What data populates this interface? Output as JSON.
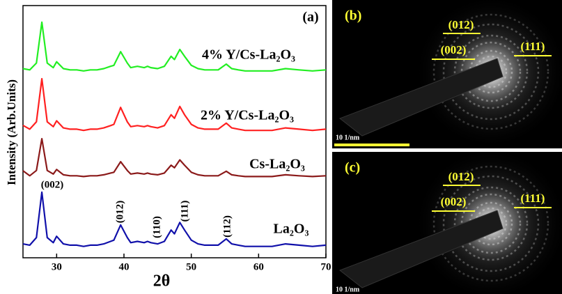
{
  "chart_data": {
    "type": "line",
    "xlabel": "2θ",
    "ylabel": "Intensity (Arb.Units)",
    "x": [
      25,
      26,
      27,
      27.8,
      28.6,
      29.5,
      30,
      31,
      32,
      33,
      34,
      35,
      36,
      37,
      38,
      38.5,
      39.5,
      40.5,
      41,
      42,
      43,
      43.5,
      44,
      45,
      46,
      47,
      47.5,
      48.3,
      49,
      50,
      51,
      52,
      53,
      54,
      55.2,
      56,
      57,
      58,
      60,
      62,
      64,
      66,
      68,
      70
    ],
    "xlim": [
      25,
      70
    ],
    "xticks": [
      30,
      40,
      50,
      60,
      70
    ],
    "ylim": [
      0,
      100
    ],
    "series": [
      {
        "name": "4% Y/Cs-La₂O₃",
        "color": "#22ee22",
        "values": [
          75,
          74.5,
          77.2,
          93.4,
          77.2,
          75.4,
          77.7,
          75,
          74.5,
          74.5,
          74.1,
          74.5,
          74.5,
          75,
          75.9,
          76.3,
          81.7,
          77.2,
          75.4,
          75.9,
          75.4,
          75.9,
          75.4,
          75,
          75.9,
          79.9,
          78.6,
          82.6,
          79.9,
          76.3,
          75,
          74.5,
          74.5,
          74.5,
          76.8,
          75,
          74.5,
          74.1,
          74.1,
          74.1,
          75,
          74.5,
          74.1,
          74.5
        ]
      },
      {
        "name": "2% Y/Cs-La₂O₃",
        "color": "#ff2020",
        "values": [
          52.5,
          51,
          53.9,
          71,
          53.9,
          52,
          54.3,
          51.5,
          51,
          51,
          50.5,
          51,
          51,
          51.5,
          52.4,
          52.9,
          59.6,
          53.9,
          52,
          52.4,
          52,
          52.4,
          52,
          51.5,
          52.4,
          56.7,
          55.3,
          60,
          56.7,
          52.9,
          51.5,
          51,
          51,
          51,
          53.4,
          51.5,
          51,
          50.5,
          50.5,
          50.5,
          51.5,
          51,
          50.5,
          51
        ]
      },
      {
        "name": "Cs-La₂O₃",
        "color": "#8b1a1a",
        "values": [
          34.5,
          32.5,
          34.6,
          47.2,
          34.6,
          33.2,
          35,
          32.9,
          32.5,
          32.5,
          32.2,
          32.5,
          32.5,
          32.9,
          33.6,
          33.9,
          38.1,
          34.6,
          33.2,
          33.6,
          33.2,
          33.6,
          33.2,
          32.9,
          33.6,
          36.7,
          35.7,
          38.8,
          36.7,
          33.9,
          32.9,
          32.5,
          32.5,
          32.5,
          34.3,
          32.9,
          32.5,
          32.2,
          32.2,
          32.2,
          32.9,
          32.5,
          32.2,
          32.5
        ]
      },
      {
        "name": "La₂O₃",
        "color": "#1010aa",
        "values": [
          5.5,
          5,
          8,
          26,
          8,
          6,
          8.5,
          5.5,
          5,
          5,
          4.5,
          5,
          5,
          5.5,
          6.5,
          7,
          13,
          8,
          6,
          6.5,
          6,
          6.5,
          6,
          5.5,
          6.5,
          11,
          9.5,
          14,
          11,
          7,
          5.5,
          5,
          5,
          5,
          7.5,
          5.5,
          5,
          4.5,
          4.5,
          4.5,
          5.5,
          5,
          4.5,
          5
        ]
      }
    ],
    "annotations": [
      "(a)",
      "(002)",
      "(012)",
      "(110)",
      "(111)",
      "(112)"
    ]
  },
  "panels": [
    {
      "label": "(b)",
      "rings": [
        "(012)",
        "(002)",
        "(111)"
      ],
      "scale_bar": "10 1/nm"
    },
    {
      "label": "(c)",
      "rings": [
        "(012)",
        "(002)",
        "(111)"
      ],
      "scale_bar": "10 1/nm"
    }
  ]
}
